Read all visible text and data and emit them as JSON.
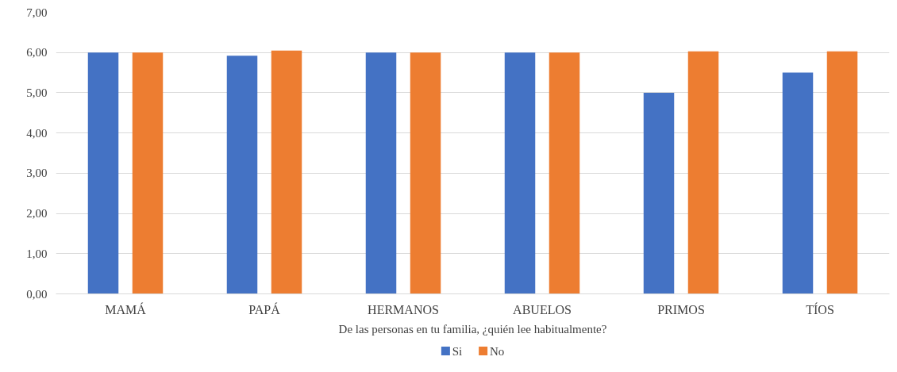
{
  "chart_data": {
    "type": "bar",
    "xlabel": "De las personas en tu familia, ¿quién lee habitualmente?",
    "categories": [
      "MAMÁ",
      "PAPÁ",
      "HERMANOS",
      "ABUELOS",
      "PRIMOS",
      "TÍOS"
    ],
    "series": [
      {
        "name": "Si",
        "color": "#4472c4",
        "values": [
          6.0,
          5.92,
          6.0,
          6.0,
          5.0,
          5.5
        ]
      },
      {
        "name": "No",
        "color": "#ed7d31",
        "values": [
          6.0,
          6.05,
          6.0,
          6.0,
          6.03,
          6.03
        ]
      }
    ],
    "ylim": [
      0,
      7
    ],
    "yticks": [
      {
        "value": 0,
        "label": "0,00"
      },
      {
        "value": 1,
        "label": "1,00"
      },
      {
        "value": 2,
        "label": "2,00"
      },
      {
        "value": 3,
        "label": "3,00"
      },
      {
        "value": 4,
        "label": "4,00"
      },
      {
        "value": 5,
        "label": "5,00"
      },
      {
        "value": 6,
        "label": "6,00"
      },
      {
        "value": 7,
        "label": "7,00"
      }
    ],
    "grid": "y",
    "legend": "bottom"
  }
}
